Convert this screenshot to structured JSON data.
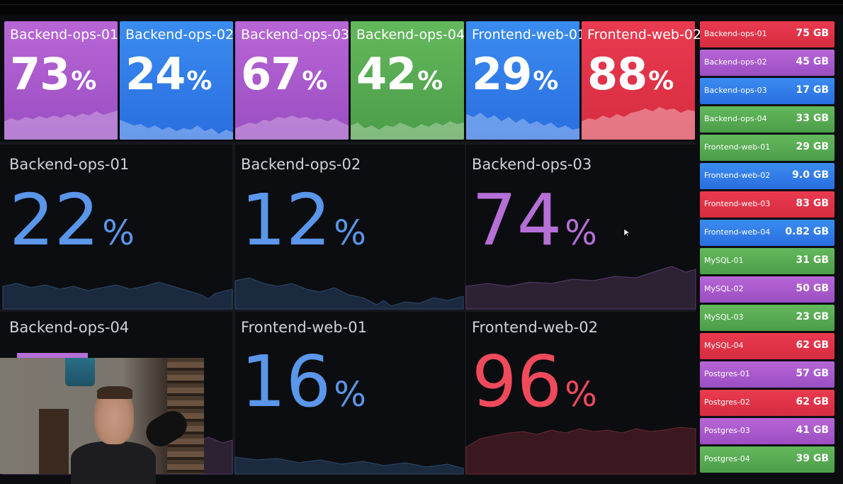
{
  "colors": {
    "purple": "#b866d6",
    "blue": "#3a8cf0",
    "green": "#63b85c",
    "red": "#ea3a50",
    "big_blue": "#5a96ea",
    "big_purple": "#b56fd6",
    "big_red": "#ef4a5c"
  },
  "stat_tiles": [
    {
      "title": "Backend-ops-01",
      "value": "73",
      "unit": "%",
      "color": "purple"
    },
    {
      "title": "Backend-ops-02",
      "value": "24",
      "unit": "%",
      "color": "blue"
    },
    {
      "title": "Backend-ops-03",
      "value": "67",
      "unit": "%",
      "color": "purple"
    },
    {
      "title": "Backend-ops-04",
      "value": "42",
      "unit": "%",
      "color": "green"
    },
    {
      "title": "Frontend-web-01",
      "value": "29",
      "unit": "%",
      "color": "blue"
    },
    {
      "title": "Frontend-web-02",
      "value": "88",
      "unit": "%",
      "color": "red"
    }
  ],
  "big_panels": [
    {
      "title": "Backend-ops-01",
      "value": "22",
      "unit": "%",
      "color": "big_blue"
    },
    {
      "title": "Backend-ops-02",
      "value": "12",
      "unit": "%",
      "color": "big_blue"
    },
    {
      "title": "Backend-ops-03",
      "value": "74",
      "unit": "%",
      "color": "big_purple"
    },
    {
      "title": "Backend-ops-04",
      "value": "",
      "unit": "",
      "color": "big_purple"
    },
    {
      "title": "Frontend-web-01",
      "value": "16",
      "unit": "%",
      "color": "big_blue"
    },
    {
      "title": "Frontend-web-02",
      "value": "96",
      "unit": "%",
      "color": "big_red"
    }
  ],
  "storage_list": [
    {
      "name": "Backend-ops-01",
      "value": "75 GB",
      "color": "red"
    },
    {
      "name": "Backend-ops-02",
      "value": "45 GB",
      "color": "purple"
    },
    {
      "name": "Backend-ops-03",
      "value": "17 GB",
      "color": "blue"
    },
    {
      "name": "Backend-ops-04",
      "value": "33 GB",
      "color": "green"
    },
    {
      "name": "Frontend-web-01",
      "value": "29 GB",
      "color": "green"
    },
    {
      "name": "Frontend-web-02",
      "value": "9.0 GB",
      "color": "blue"
    },
    {
      "name": "Frontend-web-03",
      "value": "83 GB",
      "color": "red"
    },
    {
      "name": "Frontend-web-04",
      "value": "0.82 GB",
      "color": "blue"
    },
    {
      "name": "MySQL-01",
      "value": "31 GB",
      "color": "green"
    },
    {
      "name": "MySQL-02",
      "value": "50 GB",
      "color": "purple"
    },
    {
      "name": "MySQL-03",
      "value": "23 GB",
      "color": "green"
    },
    {
      "name": "MySQL-04",
      "value": "62 GB",
      "color": "red"
    },
    {
      "name": "Postgres-01",
      "value": "57 GB",
      "color": "purple"
    },
    {
      "name": "Postgres-02",
      "value": "62 GB",
      "color": "red"
    },
    {
      "name": "Postgres-03",
      "value": "41 GB",
      "color": "purple"
    },
    {
      "name": "Postgres-04",
      "value": "39 GB",
      "color": "green"
    }
  ]
}
